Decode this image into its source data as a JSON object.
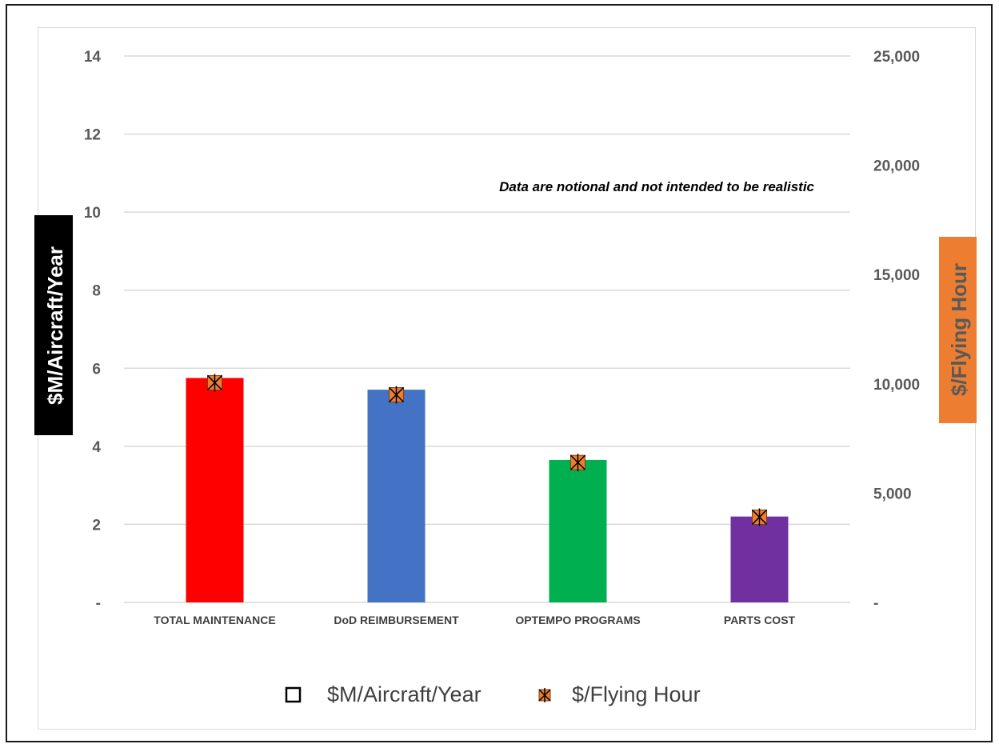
{
  "chart_data": {
    "type": "bar",
    "categories": [
      "TOTAL MAINTENANCE",
      "DoD REIMBURSEMENT",
      "OPTEMPO PROGRAMS",
      "PARTS COST"
    ],
    "series": [
      {
        "name": "$M/Aircraft/Year",
        "axis": "left",
        "mark": "bar",
        "values": [
          5.75,
          5.45,
          3.65,
          2.2
        ],
        "bar_colors": [
          "#ff0000",
          "#4472c4",
          "#00b050",
          "#7030a0"
        ]
      },
      {
        "name": "$/Flying Hour",
        "axis": "right",
        "mark": "marker",
        "values": [
          10050,
          9500,
          6400,
          3900
        ],
        "marker_color": "#ed7d31"
      }
    ],
    "y_left": {
      "label": "$M/Aircraft/Year",
      "ylim": [
        0,
        14
      ],
      "ticks": [
        0,
        2,
        4,
        6,
        8,
        10,
        12,
        14
      ],
      "tick_labels": [
        "-",
        "2",
        "4",
        "6",
        "8",
        "10",
        "12",
        "14"
      ]
    },
    "y_right": {
      "label": "$/Flying Hour",
      "ylim": [
        0,
        25000
      ],
      "ticks": [
        0,
        5000,
        10000,
        15000,
        20000,
        25000
      ],
      "tick_labels": [
        "-",
        "5,000",
        "10,000",
        "15,000",
        "20,000",
        "25,000"
      ]
    },
    "annotation": "Data are notional and not intended to be realistic",
    "grid": true,
    "legend_position": "bottom"
  },
  "colors": {
    "left_label_bg": "#000000",
    "right_label_bg": "#ed7d31",
    "tick_text": "#595959",
    "gridline": "#d9d9d9"
  }
}
